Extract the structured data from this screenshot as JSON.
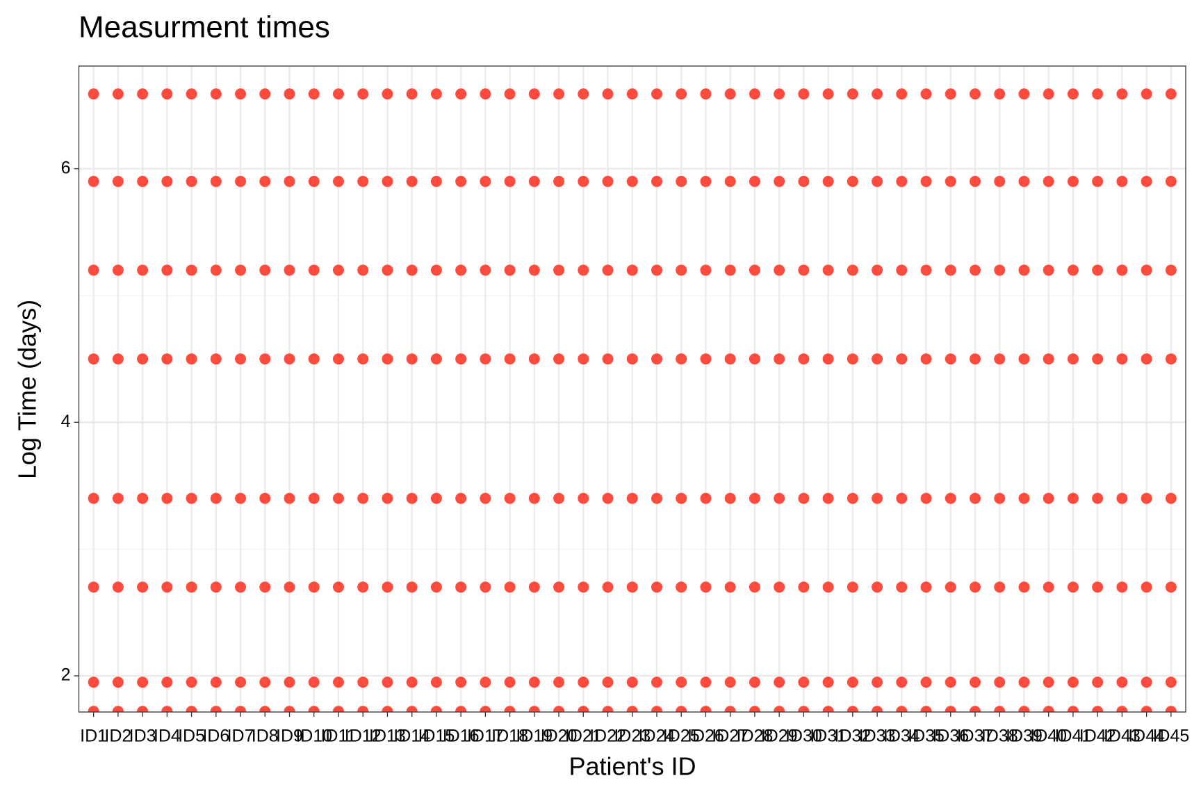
{
  "chart_data": {
    "type": "dot",
    "title": "Measurment times",
    "x_label": "Patient's ID",
    "y_label": "Log Time (days)",
    "color": "#ff4b3d",
    "grid": true,
    "minor_grid": true,
    "ylim": [
      1.715,
      6.81
    ],
    "yticks": [
      2,
      4,
      6
    ],
    "categories": [
      "ID1",
      "ID2",
      "ID3",
      "ID4",
      "ID5",
      "ID6",
      "ID7",
      "ID8",
      "ID9",
      "ID10",
      "ID11",
      "ID12",
      "ID13",
      "ID14",
      "ID15",
      "ID16",
      "ID17",
      "ID18",
      "ID19",
      "ID20",
      "ID21",
      "ID22",
      "ID23",
      "ID24",
      "ID25",
      "ID26",
      "ID27",
      "ID28",
      "ID29",
      "ID30",
      "ID31",
      "ID32",
      "ID33",
      "ID34",
      "ID35",
      "ID36",
      "ID37",
      "ID38",
      "ID39",
      "ID40",
      "ID41",
      "ID42",
      "ID43",
      "ID44",
      "ID45"
    ],
    "values": [
      [
        1.72,
        1.95,
        2.7,
        3.4,
        4.5,
        5.2,
        5.9,
        6.59
      ],
      [
        1.72,
        1.95,
        2.7,
        3.4,
        4.5,
        5.2,
        5.9,
        6.59
      ],
      [
        1.72,
        1.95,
        2.7,
        3.4,
        4.5,
        5.2,
        5.9,
        6.59
      ],
      [
        1.72,
        1.95,
        2.7,
        3.4,
        4.5,
        5.2,
        5.9,
        6.59
      ],
      [
        1.72,
        1.95,
        2.7,
        3.4,
        4.5,
        5.2,
        5.9,
        6.59
      ],
      [
        1.72,
        1.95,
        2.7,
        3.4,
        4.5,
        5.2,
        5.9,
        6.59
      ],
      [
        1.72,
        1.95,
        2.7,
        3.4,
        4.5,
        5.2,
        5.9,
        6.59
      ],
      [
        1.72,
        1.95,
        2.7,
        3.4,
        4.5,
        5.2,
        5.9,
        6.59
      ],
      [
        1.72,
        1.95,
        2.7,
        3.4,
        4.5,
        5.2,
        5.9,
        6.59
      ],
      [
        1.72,
        1.95,
        2.7,
        3.4,
        4.5,
        5.2,
        5.9,
        6.59
      ],
      [
        1.72,
        1.95,
        2.7,
        3.4,
        4.5,
        5.2,
        5.9,
        6.59
      ],
      [
        1.72,
        1.95,
        2.7,
        3.4,
        4.5,
        5.2,
        5.9,
        6.59
      ],
      [
        1.72,
        1.95,
        2.7,
        3.4,
        4.5,
        5.2,
        5.9,
        6.59
      ],
      [
        1.72,
        1.95,
        2.7,
        3.4,
        4.5,
        5.2,
        5.9,
        6.59
      ],
      [
        1.72,
        1.95,
        2.7,
        3.4,
        4.5,
        5.2,
        5.9,
        6.59
      ],
      [
        1.72,
        1.95,
        2.7,
        3.4,
        4.5,
        5.2,
        5.9,
        6.59
      ],
      [
        1.72,
        1.95,
        2.7,
        3.4,
        4.5,
        5.2,
        5.9,
        6.59
      ],
      [
        1.72,
        1.95,
        2.7,
        3.4,
        4.5,
        5.2,
        5.9,
        6.59
      ],
      [
        1.72,
        1.95,
        2.7,
        3.4,
        4.5,
        5.2,
        5.9,
        6.59
      ],
      [
        1.72,
        1.95,
        2.7,
        3.4,
        4.5,
        5.2,
        5.9,
        6.59
      ],
      [
        1.72,
        1.95,
        2.7,
        3.4,
        4.5,
        5.2,
        5.9,
        6.59
      ],
      [
        1.72,
        1.95,
        2.7,
        3.4,
        4.5,
        5.2,
        5.9,
        6.59
      ],
      [
        1.72,
        1.95,
        2.7,
        3.4,
        4.5,
        5.2,
        5.9,
        6.59
      ],
      [
        1.72,
        1.95,
        2.7,
        3.4,
        4.5,
        5.2,
        5.9,
        6.59
      ],
      [
        1.72,
        1.95,
        2.7,
        3.4,
        4.5,
        5.2,
        5.9,
        6.59
      ],
      [
        1.72,
        1.95,
        2.7,
        3.4,
        4.5,
        5.2,
        5.9,
        6.59
      ],
      [
        1.72,
        1.95,
        2.7,
        3.4,
        4.5,
        5.2,
        5.9,
        6.59
      ],
      [
        1.72,
        1.95,
        2.7,
        3.4,
        4.5,
        5.2,
        5.9,
        6.59
      ],
      [
        1.72,
        1.95,
        2.7,
        3.4,
        4.5,
        5.2,
        5.9,
        6.59
      ],
      [
        1.72,
        1.95,
        2.7,
        3.4,
        4.5,
        5.2,
        5.9,
        6.59
      ],
      [
        1.72,
        1.95,
        2.7,
        3.4,
        4.5,
        5.2,
        5.9,
        6.59
      ],
      [
        1.72,
        1.95,
        2.7,
        3.4,
        4.5,
        5.2,
        5.9,
        6.59
      ],
      [
        1.72,
        1.95,
        2.7,
        3.4,
        4.5,
        5.2,
        5.9,
        6.59
      ],
      [
        1.72,
        1.95,
        2.7,
        3.4,
        4.5,
        5.2,
        5.9,
        6.59
      ],
      [
        1.72,
        1.95,
        2.7,
        3.4,
        4.5,
        5.2,
        5.9,
        6.59
      ],
      [
        1.72,
        1.95,
        2.7,
        3.4,
        4.5,
        5.2,
        5.9,
        6.59
      ],
      [
        1.72,
        1.95,
        2.7,
        3.4,
        4.5,
        5.2,
        5.9,
        6.59
      ],
      [
        1.72,
        1.95,
        2.7,
        3.4,
        4.5,
        5.2,
        5.9,
        6.59
      ],
      [
        1.72,
        1.95,
        2.7,
        3.4,
        4.5,
        5.2,
        5.9,
        6.59
      ],
      [
        1.72,
        1.95,
        2.7,
        3.4,
        4.5,
        5.2,
        5.9,
        6.59
      ],
      [
        1.72,
        1.95,
        2.7,
        3.4,
        4.5,
        5.2,
        5.9,
        6.59
      ],
      [
        1.72,
        1.95,
        2.7,
        3.4,
        4.5,
        5.2,
        5.9,
        6.59
      ],
      [
        1.72,
        1.95,
        2.7,
        3.4,
        4.5,
        5.2,
        5.9,
        6.59
      ],
      [
        1.72,
        1.95,
        2.7,
        3.4,
        4.5,
        5.2,
        5.9,
        6.59
      ],
      [
        1.72,
        1.95,
        2.7,
        3.4,
        4.5,
        5.2,
        5.9,
        6.59
      ]
    ]
  }
}
